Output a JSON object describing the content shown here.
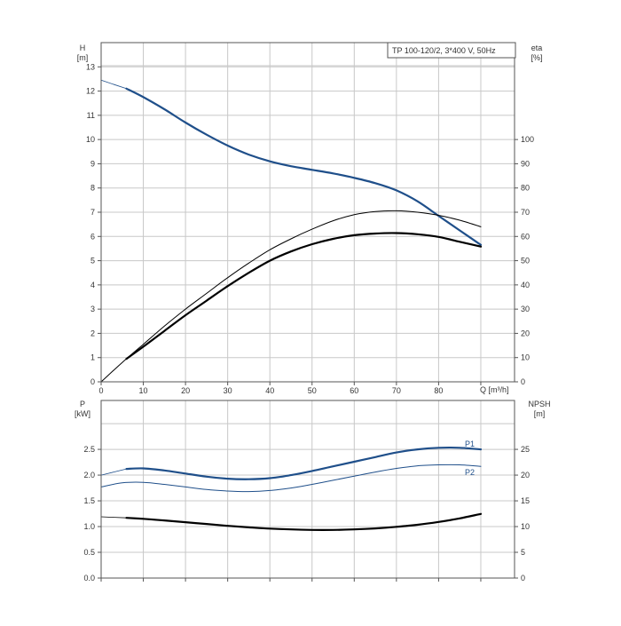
{
  "chart_data": [
    {
      "type": "line",
      "title": "TP 100-120/2, 3*400 V, 50Hz",
      "left_axis": {
        "label_line1": "H",
        "label_line2": "[m]",
        "ticks": [
          0,
          1,
          2,
          3,
          4,
          5,
          6,
          7,
          8,
          9,
          10,
          11,
          12,
          13
        ],
        "range": [
          0,
          14
        ]
      },
      "right_axis": {
        "label_line1": "eta",
        "label_line2": "[%]",
        "ticks": [
          0,
          10,
          20,
          30,
          40,
          50,
          60,
          70,
          80,
          90,
          100
        ],
        "range": [
          0,
          140
        ]
      },
      "x_axis": {
        "label": "Q [m³/h]",
        "ticks": [
          0,
          10,
          20,
          30,
          40,
          50,
          60,
          70,
          80
        ],
        "range": [
          0,
          98
        ]
      },
      "grid": true,
      "series": [
        {
          "key": "H",
          "axis": "left",
          "color": "#1f4f8a",
          "width": 2.2,
          "dashed_start": true,
          "x": [
            0,
            6,
            10,
            15,
            20,
            25,
            30,
            35,
            40,
            45,
            50,
            55,
            60,
            65,
            70,
            75,
            80,
            85,
            90
          ],
          "y": [
            12.45,
            12.1,
            11.75,
            11.25,
            10.7,
            10.2,
            9.75,
            9.38,
            9.1,
            8.9,
            8.75,
            8.6,
            8.42,
            8.2,
            7.9,
            7.45,
            6.85,
            6.25,
            5.65
          ]
        },
        {
          "key": "eta_thin",
          "axis": "right",
          "color": "#000000",
          "width": 1,
          "x": [
            0,
            5,
            10,
            15,
            20,
            25,
            30,
            35,
            40,
            45,
            50,
            55,
            60,
            65,
            70,
            75,
            80,
            85,
            90
          ],
          "y": [
            0,
            8,
            15.5,
            23,
            30,
            36.5,
            43,
            49,
            54.5,
            59,
            63,
            66.5,
            69,
            70.3,
            70.6,
            70,
            68.7,
            66.7,
            64
          ]
        },
        {
          "key": "eta_thick",
          "axis": "right",
          "color": "#000000",
          "width": 2.2,
          "x": [
            6,
            10,
            15,
            20,
            25,
            30,
            35,
            40,
            45,
            50,
            55,
            60,
            65,
            70,
            75,
            80,
            85,
            90
          ],
          "y": [
            9.5,
            14.5,
            21,
            27.5,
            33.5,
            39.5,
            45,
            50,
            53.8,
            56.8,
            59,
            60.5,
            61.2,
            61.4,
            60.9,
            59.8,
            57.8,
            55.8
          ]
        }
      ]
    },
    {
      "type": "line",
      "left_axis": {
        "label_line1": "P",
        "label_line2": "[kW]",
        "ticks": [
          "0.0",
          "0.5",
          "1.0",
          "1.5",
          "2.0",
          "2.5"
        ],
        "tick_values": [
          0,
          0.5,
          1,
          1.5,
          2,
          2.5
        ],
        "range": [
          0,
          3.45
        ]
      },
      "right_axis": {
        "label_line1": "NPSH",
        "label_line2": "[m]",
        "ticks": [
          0,
          5,
          10,
          15,
          20,
          25
        ],
        "range": [
          0,
          34.5
        ]
      },
      "x_axis": {
        "range": [
          0,
          98
        ]
      },
      "grid": true,
      "series": [
        {
          "key": "P1",
          "name": "P1",
          "axis": "left",
          "color": "#1f4f8a",
          "width": 2.2,
          "dashed_start": true,
          "x": [
            0,
            6,
            10,
            15,
            20,
            25,
            30,
            35,
            40,
            45,
            50,
            55,
            60,
            65,
            70,
            75,
            80,
            85,
            90
          ],
          "y": [
            2.0,
            2.12,
            2.13,
            2.09,
            2.03,
            1.97,
            1.93,
            1.92,
            1.94,
            2.0,
            2.08,
            2.17,
            2.26,
            2.35,
            2.44,
            2.5,
            2.53,
            2.53,
            2.5
          ]
        },
        {
          "key": "P2",
          "name": "P2",
          "axis": "left",
          "color": "#1f4f8a",
          "width": 1,
          "x": [
            0,
            5,
            10,
            15,
            20,
            25,
            30,
            35,
            40,
            45,
            50,
            55,
            60,
            65,
            70,
            75,
            80,
            85,
            90
          ],
          "y": [
            1.77,
            1.85,
            1.86,
            1.82,
            1.77,
            1.72,
            1.69,
            1.68,
            1.7,
            1.75,
            1.82,
            1.9,
            1.98,
            2.06,
            2.13,
            2.18,
            2.2,
            2.2,
            2.17
          ]
        },
        {
          "key": "NPSH",
          "axis": "right",
          "color": "#000000",
          "width": 2.2,
          "dashed_start": true,
          "x": [
            0,
            6,
            10,
            15,
            20,
            25,
            30,
            35,
            40,
            45,
            50,
            55,
            60,
            65,
            70,
            75,
            80,
            85,
            90
          ],
          "y": [
            11.9,
            11.7,
            11.5,
            11.2,
            10.85,
            10.5,
            10.15,
            9.85,
            9.6,
            9.45,
            9.35,
            9.35,
            9.45,
            9.65,
            9.95,
            10.35,
            10.9,
            11.6,
            12.45
          ]
        }
      ]
    }
  ]
}
